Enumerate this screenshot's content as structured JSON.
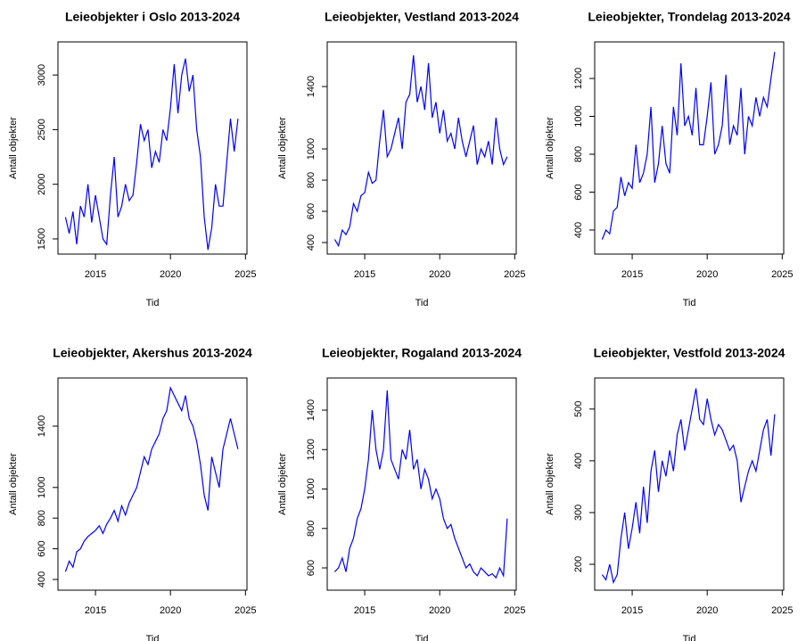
{
  "chart_data": [
    {
      "type": "line",
      "title": "Leieobjekter i Oslo 2013-2024",
      "xlabel": "Tid",
      "ylabel": "Antall objekter",
      "x": [
        2013,
        2013.25,
        2013.5,
        2013.75,
        2014,
        2014.25,
        2014.5,
        2014.75,
        2015,
        2015.25,
        2015.5,
        2015.75,
        2016,
        2016.25,
        2016.5,
        2016.75,
        2017,
        2017.25,
        2017.5,
        2017.75,
        2018,
        2018.25,
        2018.5,
        2018.75,
        2019,
        2019.25,
        2019.5,
        2019.75,
        2020,
        2020.25,
        2020.5,
        2020.75,
        2021,
        2021.25,
        2021.5,
        2021.75,
        2022,
        2022.25,
        2022.5,
        2022.75,
        2023,
        2023.25,
        2023.5,
        2023.75,
        2024,
        2024.25,
        2024.5
      ],
      "values": [
        1700,
        1550,
        1750,
        1450,
        1800,
        1700,
        2000,
        1650,
        1900,
        1700,
        1500,
        1450,
        1900,
        2250,
        1700,
        1800,
        2000,
        1850,
        1900,
        2200,
        2550,
        2400,
        2500,
        2150,
        2300,
        2200,
        2500,
        2400,
        2700,
        3100,
        2650,
        3000,
        3150,
        2850,
        3000,
        2500,
        2250,
        1700,
        1400,
        1600,
        2000,
        1800,
        1800,
        2200,
        2600,
        2300,
        2600
      ],
      "color": "#0000ff",
      "xlim": [
        2012.5,
        2025.1
      ],
      "xticks": [
        2015,
        2020,
        2025
      ],
      "ylim": [
        1361,
        3303
      ],
      "yticks": [
        1500,
        2000,
        2500,
        3000
      ]
    },
    {
      "type": "line",
      "title": "Leieobjekter, Vestland 2013-2024",
      "xlabel": "Tid",
      "ylabel": "Antall objekter",
      "x": [
        2013,
        2013.25,
        2013.5,
        2013.75,
        2014,
        2014.25,
        2014.5,
        2014.75,
        2015,
        2015.25,
        2015.5,
        2015.75,
        2016,
        2016.25,
        2016.5,
        2016.75,
        2017,
        2017.25,
        2017.5,
        2017.75,
        2018,
        2018.25,
        2018.5,
        2018.75,
        2019,
        2019.25,
        2019.5,
        2019.75,
        2020,
        2020.25,
        2020.5,
        2020.75,
        2021,
        2021.25,
        2021.5,
        2021.75,
        2022,
        2022.25,
        2022.5,
        2022.75,
        2023,
        2023.25,
        2023.5,
        2023.75,
        2024,
        2024.25,
        2024.5
      ],
      "values": [
        420,
        380,
        480,
        450,
        500,
        650,
        600,
        700,
        720,
        850,
        780,
        800,
        1050,
        1250,
        950,
        1000,
        1100,
        1200,
        1000,
        1300,
        1350,
        1600,
        1300,
        1400,
        1250,
        1550,
        1200,
        1300,
        1100,
        1250,
        1050,
        1100,
        1000,
        1200,
        1050,
        950,
        1050,
        1150,
        900,
        1000,
        950,
        1050,
        900,
        1200,
        1000,
        900,
        950
      ],
      "color": "#0000ff",
      "xlim": [
        2012.5,
        2025.1
      ],
      "xticks": [
        2015,
        2020,
        2025
      ],
      "ylim": [
        326,
        1686
      ],
      "yticks": [
        400,
        600,
        800,
        1000,
        1400
      ]
    },
    {
      "type": "line",
      "title": "Leieobjekter, Trondelag 2013-2024",
      "xlabel": "Tid",
      "ylabel": "Antall objekter",
      "x": [
        2013,
        2013.25,
        2013.5,
        2013.75,
        2014,
        2014.25,
        2014.5,
        2014.75,
        2015,
        2015.25,
        2015.5,
        2015.75,
        2016,
        2016.25,
        2016.5,
        2016.75,
        2017,
        2017.25,
        2017.5,
        2017.75,
        2018,
        2018.25,
        2018.5,
        2018.75,
        2019,
        2019.25,
        2019.5,
        2019.75,
        2020,
        2020.25,
        2020.5,
        2020.75,
        2021,
        2021.25,
        2021.5,
        2021.75,
        2022,
        2022.25,
        2022.5,
        2022.75,
        2023,
        2023.25,
        2023.5,
        2023.75,
        2024,
        2024.25,
        2024.5
      ],
      "values": [
        350,
        400,
        380,
        500,
        520,
        680,
        580,
        650,
        620,
        850,
        650,
        700,
        800,
        1050,
        650,
        750,
        950,
        750,
        700,
        1050,
        900,
        1280,
        950,
        1000,
        900,
        1150,
        850,
        850,
        1000,
        1180,
        800,
        850,
        950,
        1220,
        850,
        950,
        900,
        1150,
        800,
        1000,
        950,
        1100,
        1000,
        1100,
        1050,
        1200,
        1340
      ],
      "color": "#0000ff",
      "xlim": [
        2012.5,
        2025.1
      ],
      "xticks": [
        2015,
        2020,
        2025
      ],
      "ylim": [
        273,
        1393
      ],
      "yticks": [
        400,
        600,
        800,
        1000,
        1200
      ]
    },
    {
      "type": "line",
      "title": "Leieobjekter, Akershus 2013-2024",
      "xlabel": "Tid",
      "ylabel": "Antall objekter",
      "x": [
        2013,
        2013.25,
        2013.5,
        2013.75,
        2014,
        2014.25,
        2014.5,
        2014.75,
        2015,
        2015.25,
        2015.5,
        2015.75,
        2016,
        2016.25,
        2016.5,
        2016.75,
        2017,
        2017.25,
        2017.5,
        2017.75,
        2018,
        2018.25,
        2018.5,
        2018.75,
        2019,
        2019.25,
        2019.5,
        2019.75,
        2020,
        2020.25,
        2020.5,
        2020.75,
        2021,
        2021.25,
        2021.5,
        2021.75,
        2022,
        2022.25,
        2022.5,
        2022.75,
        2023,
        2023.25,
        2023.5,
        2023.75,
        2024,
        2024.25,
        2024.5
      ],
      "values": [
        450,
        520,
        480,
        580,
        600,
        650,
        680,
        700,
        720,
        750,
        700,
        760,
        800,
        850,
        780,
        880,
        820,
        900,
        950,
        1000,
        1100,
        1200,
        1150,
        1250,
        1300,
        1350,
        1450,
        1500,
        1650,
        1600,
        1550,
        1500,
        1600,
        1450,
        1400,
        1300,
        1150,
        950,
        850,
        1200,
        1100,
        1000,
        1250,
        1350,
        1450,
        1350,
        1250
      ],
      "color": "#0000ff",
      "xlim": [
        2012.5,
        2025.1
      ],
      "xticks": [
        2015,
        2020,
        2025
      ],
      "ylim": [
        330,
        1714
      ],
      "yticks": [
        400,
        600,
        800,
        1000,
        1400
      ]
    },
    {
      "type": "line",
      "title": "Leieobjekter, Rogaland 2013-2024",
      "xlabel": "Tid",
      "ylabel": "Antall objekter",
      "x": [
        2013,
        2013.25,
        2013.5,
        2013.75,
        2014,
        2014.25,
        2014.5,
        2014.75,
        2015,
        2015.25,
        2015.5,
        2015.75,
        2016,
        2016.25,
        2016.5,
        2016.75,
        2017,
        2017.25,
        2017.5,
        2017.75,
        2018,
        2018.25,
        2018.5,
        2018.75,
        2019,
        2019.25,
        2019.5,
        2019.75,
        2020,
        2020.25,
        2020.5,
        2020.75,
        2021,
        2021.25,
        2021.5,
        2021.75,
        2022,
        2022.25,
        2022.5,
        2022.75,
        2023,
        2023.25,
        2023.5,
        2023.75,
        2024,
        2024.25,
        2024.5
      ],
      "values": [
        580,
        600,
        650,
        580,
        700,
        750,
        850,
        900,
        1000,
        1150,
        1400,
        1200,
        1100,
        1200,
        1500,
        1150,
        1100,
        1050,
        1200,
        1150,
        1300,
        1100,
        1150,
        1000,
        1100,
        1050,
        950,
        1000,
        950,
        850,
        800,
        820,
        750,
        700,
        650,
        600,
        620,
        580,
        560,
        600,
        580,
        560,
        570,
        550,
        600,
        560,
        850
      ],
      "color": "#0000ff",
      "xlim": [
        2012.5,
        2025.1
      ],
      "xticks": [
        2015,
        2020,
        2025
      ],
      "ylim": [
        487,
        1563
      ],
      "yticks": [
        600,
        800,
        1000,
        1200,
        1400
      ]
    },
    {
      "type": "line",
      "title": "Leieobjekter, Vestfold 2013-2024",
      "xlabel": "Tid",
      "ylabel": "Antall objekter",
      "x": [
        2013,
        2013.25,
        2013.5,
        2013.75,
        2014,
        2014.25,
        2014.5,
        2014.75,
        2015,
        2015.25,
        2015.5,
        2015.75,
        2016,
        2016.25,
        2016.5,
        2016.75,
        2017,
        2017.25,
        2017.5,
        2017.75,
        2018,
        2018.25,
        2018.5,
        2018.75,
        2019,
        2019.25,
        2019.5,
        2019.75,
        2020,
        2020.25,
        2020.5,
        2020.75,
        2021,
        2021.25,
        2021.5,
        2021.75,
        2022,
        2022.25,
        2022.5,
        2022.75,
        2023,
        2023.25,
        2023.5,
        2023.75,
        2024,
        2024.25,
        2024.5
      ],
      "values": [
        180,
        170,
        200,
        165,
        180,
        250,
        300,
        230,
        270,
        320,
        260,
        350,
        280,
        380,
        420,
        340,
        400,
        370,
        420,
        380,
        450,
        480,
        420,
        460,
        500,
        540,
        480,
        470,
        520,
        480,
        450,
        470,
        460,
        440,
        420,
        430,
        400,
        320,
        350,
        380,
        400,
        380,
        420,
        460,
        480,
        410,
        490
      ],
      "color": "#0000ff",
      "xlim": [
        2012.5,
        2025.1
      ],
      "xticks": [
        2015,
        2020,
        2025
      ],
      "ylim": [
        150,
        560
      ],
      "yticks": [
        200,
        300,
        400,
        500
      ]
    }
  ]
}
